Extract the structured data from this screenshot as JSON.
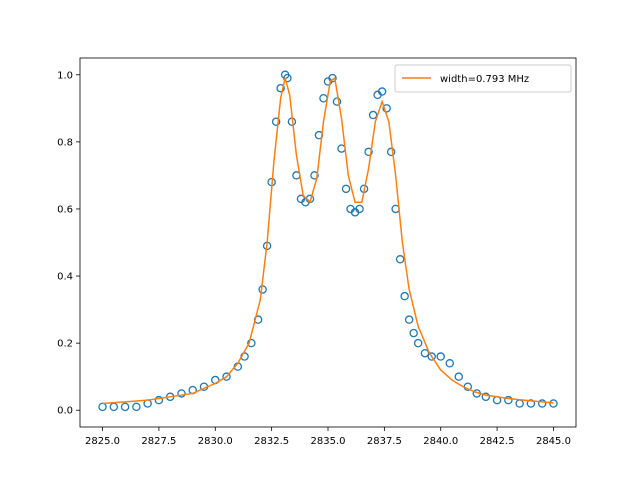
{
  "chart_data": {
    "type": "scatter",
    "title": "",
    "xlabel": "",
    "ylabel": "",
    "xlim": [
      2824.0,
      2846.0
    ],
    "ylim": [
      -0.05,
      1.05
    ],
    "xticks": [
      2825.0,
      2827.5,
      2830.0,
      2832.5,
      2835.0,
      2837.5,
      2840.0,
      2842.5,
      2845.0
    ],
    "xtick_labels": [
      "2825.0",
      "2827.5",
      "2830.0",
      "2832.5",
      "2835.0",
      "2837.5",
      "2840.0",
      "2842.5",
      "2845.0"
    ],
    "yticks": [
      0.0,
      0.2,
      0.4,
      0.6,
      0.8,
      1.0
    ],
    "ytick_labels": [
      "0.0",
      "0.2",
      "0.4",
      "0.6",
      "0.8",
      "1.0"
    ],
    "grid": false,
    "legend": {
      "placement": "top-right",
      "entries": [
        "width=0.793 MHz"
      ]
    },
    "series": [
      {
        "kind": "scatter",
        "marker": "open-circle",
        "color": "#1f77b4",
        "x": [
          2825.0,
          2825.5,
          2826.0,
          2826.5,
          2827.0,
          2827.5,
          2828.0,
          2828.5,
          2829.0,
          2829.5,
          2830.0,
          2830.5,
          2831.0,
          2831.3,
          2831.6,
          2831.9,
          2832.1,
          2832.3,
          2832.5,
          2832.7,
          2832.9,
          2833.1,
          2833.2,
          2833.4,
          2833.6,
          2833.8,
          2834.0,
          2834.2,
          2834.4,
          2834.6,
          2834.8,
          2835.0,
          2835.2,
          2835.4,
          2835.6,
          2835.8,
          2836.0,
          2836.2,
          2836.4,
          2836.6,
          2836.8,
          2837.0,
          2837.2,
          2837.4,
          2837.6,
          2837.8,
          2838.0,
          2838.2,
          2838.4,
          2838.6,
          2838.8,
          2839.0,
          2839.3,
          2839.6,
          2840.0,
          2840.4,
          2840.8,
          2841.2,
          2841.6,
          2842.0,
          2842.5,
          2843.0,
          2843.5,
          2844.0,
          2844.5,
          2845.0
        ],
        "y": [
          0.01,
          0.01,
          0.01,
          0.01,
          0.02,
          0.03,
          0.04,
          0.05,
          0.06,
          0.07,
          0.09,
          0.1,
          0.13,
          0.16,
          0.2,
          0.27,
          0.36,
          0.49,
          0.68,
          0.86,
          0.96,
          1.0,
          0.99,
          0.86,
          0.7,
          0.63,
          0.62,
          0.63,
          0.7,
          0.82,
          0.93,
          0.98,
          0.99,
          0.92,
          0.78,
          0.66,
          0.6,
          0.59,
          0.6,
          0.66,
          0.77,
          0.88,
          0.94,
          0.95,
          0.9,
          0.77,
          0.6,
          0.45,
          0.34,
          0.27,
          0.23,
          0.2,
          0.17,
          0.16,
          0.16,
          0.14,
          0.1,
          0.07,
          0.05,
          0.04,
          0.03,
          0.03,
          0.02,
          0.02,
          0.02,
          0.02
        ]
      },
      {
        "kind": "line",
        "name": "width=0.793 MHz",
        "color": "#ff7f0e",
        "x": [
          2825.0,
          2826.0,
          2827.0,
          2828.0,
          2829.0,
          2830.0,
          2830.5,
          2831.0,
          2831.5,
          2832.0,
          2832.3,
          2832.6,
          2832.9,
          2833.1,
          2833.3,
          2833.6,
          2833.9,
          2834.2,
          2834.5,
          2834.8,
          2835.1,
          2835.3,
          2835.6,
          2835.9,
          2836.2,
          2836.5,
          2836.8,
          2837.1,
          2837.4,
          2837.7,
          2838.0,
          2838.3,
          2838.6,
          2839.0,
          2839.5,
          2840.0,
          2840.5,
          2841.0,
          2841.5,
          2842.0,
          2843.0,
          2844.0,
          2845.0
        ],
        "y": [
          0.02,
          0.025,
          0.03,
          0.04,
          0.05,
          0.08,
          0.1,
          0.14,
          0.2,
          0.33,
          0.5,
          0.74,
          0.93,
          0.99,
          0.94,
          0.76,
          0.64,
          0.62,
          0.69,
          0.86,
          0.98,
          0.99,
          0.87,
          0.7,
          0.62,
          0.62,
          0.72,
          0.86,
          0.92,
          0.86,
          0.7,
          0.5,
          0.36,
          0.25,
          0.17,
          0.12,
          0.09,
          0.07,
          0.055,
          0.045,
          0.035,
          0.028,
          0.022
        ]
      }
    ]
  }
}
